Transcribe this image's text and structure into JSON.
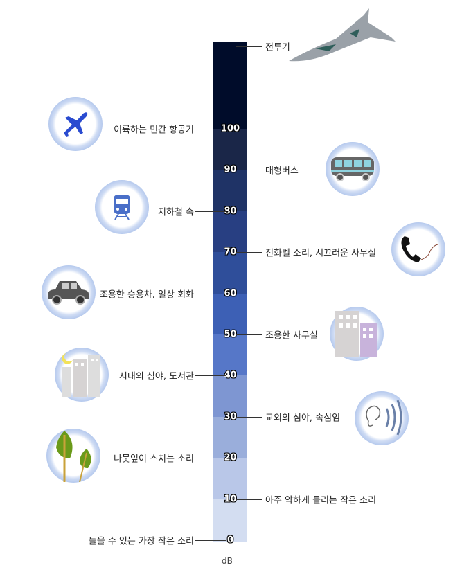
{
  "unit": "dB",
  "ticks": [
    "0",
    "10",
    "20",
    "30",
    "40",
    "50",
    "60",
    "70",
    "80",
    "90",
    "100"
  ],
  "bands": [
    {
      "from": 0,
      "to": 10,
      "color": "#d3ddf1"
    },
    {
      "from": 10,
      "to": 20,
      "color": "#b9c7e8"
    },
    {
      "from": 20,
      "to": 30,
      "color": "#9aaedb"
    },
    {
      "from": 30,
      "to": 40,
      "color": "#7e96d2"
    },
    {
      "from": 40,
      "to": 50,
      "color": "#5677c8"
    },
    {
      "from": 50,
      "to": 60,
      "color": "#3d60b5"
    },
    {
      "from": 60,
      "to": 70,
      "color": "#2f4e9a"
    },
    {
      "from": 70,
      "to": 80,
      "color": "#283f82"
    },
    {
      "from": 80,
      "to": 90,
      "color": "#1f3366"
    },
    {
      "from": 90,
      "to": 100,
      "color": "#1a2648"
    },
    {
      "from": 100,
      "to": 121.5,
      "color": "#000c2a"
    }
  ],
  "labels": [
    {
      "db": 120,
      "side": "right",
      "text": "전투기",
      "icon": "fighter-jet-icon"
    },
    {
      "db": 100,
      "side": "left",
      "text": "이륙하는 민간 항공기",
      "icon": "airplane-icon"
    },
    {
      "db": 90,
      "side": "right",
      "text": "대형버스",
      "icon": "bus-icon"
    },
    {
      "db": 80,
      "side": "left",
      "text": "지하철 속",
      "icon": "subway-train-icon"
    },
    {
      "db": 70,
      "side": "right",
      "text": "전화벨 소리, 시끄러운 사무실",
      "icon": "telephone-icon"
    },
    {
      "db": 60,
      "side": "left",
      "text": "조용한 승용차, 일상 회화",
      "icon": "car-icon"
    },
    {
      "db": 50,
      "side": "right",
      "text": "조용한 사무실",
      "icon": "office-building-icon"
    },
    {
      "db": 40,
      "side": "left",
      "text": "시내외 심야, 도서관",
      "icon": "night-city-icon"
    },
    {
      "db": 30,
      "side": "right",
      "text": "교외의 심야, 속심임",
      "icon": "ear-icon"
    },
    {
      "db": 20,
      "side": "left",
      "text": "나뭇잎이 스치는 소리",
      "icon": "leaves-icon"
    },
    {
      "db": 10,
      "side": "right",
      "text": "아주 약하게 들리는 작은 소리",
      "icon": ""
    },
    {
      "db": 0,
      "side": "left",
      "text": "들을 수 있는 가장 작은 소리",
      "icon": ""
    }
  ]
}
